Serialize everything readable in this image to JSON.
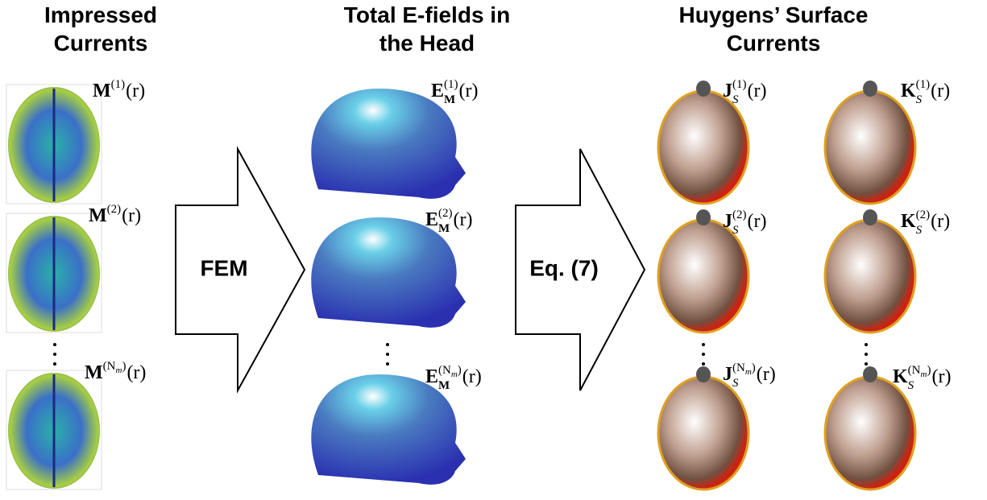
{
  "columns": [
    {
      "title_lines": [
        "Impressed",
        "Currents"
      ],
      "labels": [
        {
          "base": "M",
          "sup": "(1)",
          "arg": "(r)"
        },
        {
          "base": "M",
          "sup": "(2)",
          "arg": "(r)"
        },
        {
          "base": "M",
          "sup": "(N",
          "sup_sub": "m",
          "sup_end": ")",
          "arg": "(r)"
        }
      ]
    },
    {
      "title_lines": [
        "Total E-fields in",
        "the Head"
      ],
      "labels": [
        {
          "base": "E",
          "sub": "M",
          "sup": "(1)",
          "arg": "(r)"
        },
        {
          "base": "E",
          "sub": "M",
          "sup": "(2)",
          "arg": "(r)"
        },
        {
          "base": "E",
          "sub": "M",
          "sup": "(N",
          "sup_sub": "m",
          "sup_end": ")",
          "arg": "(r)"
        }
      ]
    },
    {
      "title_lines": [
        "Huygens’ Surface",
        "Currents"
      ],
      "labels": [
        {
          "base": "J",
          "sub": "S",
          "sup": "(1)",
          "arg": "(r)"
        },
        {
          "base": "J",
          "sub": "S",
          "sup": "(2)",
          "arg": "(r)"
        },
        {
          "base": "J",
          "sub": "S",
          "sup": "(N",
          "sup_sub": "m",
          "sup_end": ")",
          "arg": "(r)"
        },
        {
          "base": "K",
          "sub": "S",
          "sup": "(1)",
          "arg": "(r)"
        },
        {
          "base": "K",
          "sub": "S",
          "sup": "(2)",
          "arg": "(r)"
        },
        {
          "base": "K",
          "sub": "S",
          "sup": "(N",
          "sup_sub": "m",
          "sup_end": ")",
          "arg": "(r)"
        }
      ]
    }
  ],
  "arrows": [
    {
      "label": "FEM"
    },
    {
      "label": "Eq. (7)"
    }
  ]
}
